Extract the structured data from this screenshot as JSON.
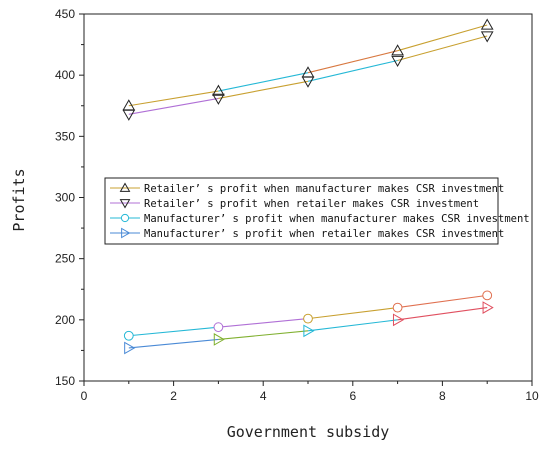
{
  "chart_data": {
    "type": "line",
    "title": "",
    "xlabel": "Government subsidy",
    "ylabel": "Profits",
    "xlim": [
      0,
      10
    ],
    "ylim": [
      150,
      450
    ],
    "xticks": [
      0,
      2,
      4,
      6,
      8,
      10
    ],
    "yticks": [
      150,
      200,
      250,
      300,
      350,
      400,
      450
    ],
    "grid": false,
    "legend_position": "center-left",
    "x": [
      1,
      3,
      5,
      7,
      9
    ],
    "series": [
      {
        "name": "Retailer’ s profit when manufacturer makes CSR investment",
        "marker": "triangle-up",
        "values": [
          375,
          387,
          402,
          420,
          441
        ],
        "segment_colors": [
          "#c8a030",
          "#25b8d6",
          "#d87840",
          "#c8a030"
        ]
      },
      {
        "name": "Retailer’ s profit when retailer makes CSR investment",
        "marker": "triangle-down",
        "values": [
          368,
          381,
          395,
          412,
          432
        ],
        "segment_colors": [
          "#b070d6",
          "#c8a030",
          "#25b8d6",
          "#c8a030"
        ]
      },
      {
        "name": "Manufacturer’ s profit when manufacturer makes CSR investment",
        "marker": "circle",
        "values": [
          187,
          194,
          201,
          210,
          220
        ],
        "segment_colors": [
          "#25b8d6",
          "#b070d6",
          "#c8a030",
          "#e07050"
        ]
      },
      {
        "name": "Manufacturer’ s profit when retailer makes CSR investment",
        "marker": "triangle-right",
        "values": [
          177,
          184,
          191,
          200,
          210
        ],
        "segment_colors": [
          "#4a8ad6",
          "#80b030",
          "#25b8d6",
          "#e05060"
        ]
      }
    ],
    "legend_colors": [
      "#c8a030",
      "#b070d6",
      "#25b8d6",
      "#4a8ad6"
    ]
  }
}
